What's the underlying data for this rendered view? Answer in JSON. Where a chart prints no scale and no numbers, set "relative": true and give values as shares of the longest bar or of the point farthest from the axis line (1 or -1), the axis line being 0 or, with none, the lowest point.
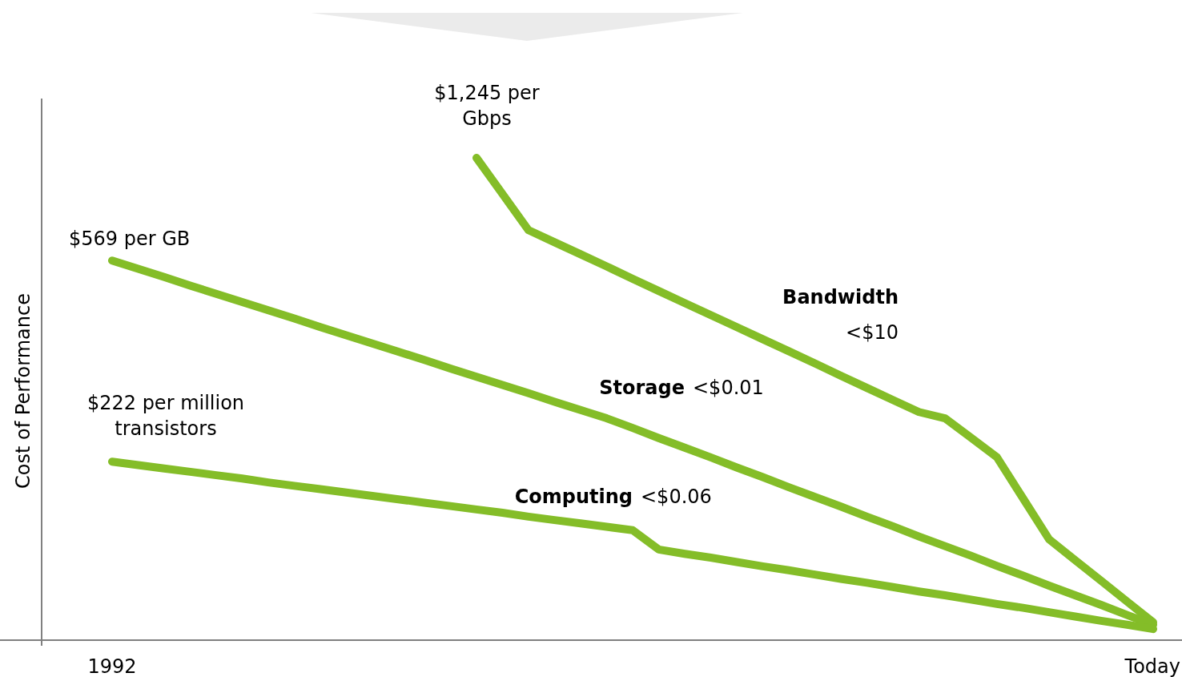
{
  "chart_data": {
    "type": "line",
    "relative": true,
    "ylabel": "Cost of Performance",
    "categories": [
      "1992",
      null,
      null,
      null,
      null,
      null,
      null,
      null,
      null,
      null,
      null,
      null,
      null,
      null,
      null,
      null,
      null,
      null,
      null,
      null,
      null,
      null,
      null,
      null,
      null,
      null,
      null,
      null,
      null,
      null,
      null,
      null,
      null,
      null,
      null,
      null,
      null,
      null,
      null,
      null,
      "Today"
    ],
    "series": [
      {
        "name": "Bandwidth",
        "color": "#84bd28",
        "values": [
          null,
          null,
          null,
          null,
          null,
          null,
          null,
          null,
          null,
          null,
          null,
          null,
          null,
          null,
          1,
          0.925,
          0.85,
          0.825,
          0.8,
          0.775,
          0.749,
          0.724,
          0.699,
          0.674,
          0.649,
          0.624,
          0.599,
          0.574,
          0.548,
          0.523,
          0.498,
          0.473,
          0.46,
          0.42,
          0.379,
          0.294,
          0.209,
          0.166,
          0.123,
          0.08,
          0.037
        ]
      },
      {
        "name": "Storage",
        "color": "#84bd28",
        "values": [
          0.787,
          0.77,
          0.753,
          0.735,
          0.718,
          0.701,
          0.684,
          0.667,
          0.649,
          0.632,
          0.615,
          0.598,
          0.581,
          0.563,
          0.546,
          0.529,
          0.512,
          0.494,
          0.477,
          0.46,
          0.44,
          0.419,
          0.399,
          0.379,
          0.358,
          0.338,
          0.317,
          0.297,
          0.277,
          0.256,
          0.236,
          0.215,
          0.195,
          0.175,
          0.154,
          0.134,
          0.113,
          0.093,
          0.073,
          0.052,
          0.032
        ]
      },
      {
        "name": "Computing",
        "color": "#84bd28",
        "values": [
          0.37,
          0.363,
          0.356,
          0.349,
          0.342,
          0.335,
          0.327,
          0.32,
          0.313,
          0.306,
          0.299,
          0.292,
          0.285,
          0.278,
          0.271,
          0.264,
          0.256,
          0.249,
          0.242,
          0.235,
          0.228,
          0.188,
          0.179,
          0.171,
          0.162,
          0.153,
          0.145,
          0.136,
          0.127,
          0.119,
          0.11,
          0.101,
          0.093,
          0.084,
          0.075,
          0.067,
          0.058,
          0.049,
          0.04,
          0.032,
          0.023
        ]
      }
    ],
    "annotations": [
      "$1,245 per Gbps",
      "$569 per GB",
      "$222 per million transistors",
      "<$10",
      "<$0.01",
      "<$0.06"
    ]
  }
}
